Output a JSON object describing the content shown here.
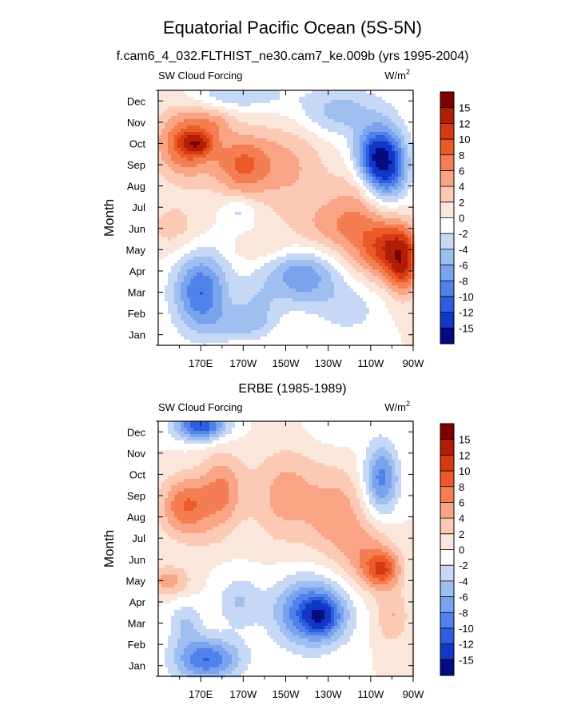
{
  "title": "Equatorial Pacific Ocean (5S-5N)",
  "chart_data": [
    {
      "type": "heatmap",
      "title": "f.cam6_4_032.FLTHIST_ne30.cam7_ke.009b (yrs 1995-2004)",
      "left_label": "SW Cloud Forcing",
      "units_base": "W/m",
      "units_exp": "2",
      "ylabel": "Month",
      "x_ticks": [
        "170E",
        "170W",
        "150W",
        "130W",
        "110W",
        "90W"
      ],
      "y_ticks": [
        "Jan",
        "Feb",
        "Mar",
        "Apr",
        "May",
        "Jun",
        "Jul",
        "Aug",
        "Sep",
        "Oct",
        "Nov",
        "Dec"
      ],
      "colorbar_labels": [
        "15",
        "12",
        "10",
        "8",
        "6",
        "4",
        "2",
        "0",
        "-2",
        "-4",
        "-6",
        "-8",
        "-10",
        "-12",
        "-15"
      ],
      "colorbar_colors": [
        "#800000",
        "#b01e06",
        "#d53a12",
        "#ec5a28",
        "#f47e52",
        "#f9a585",
        "#fcc9b4",
        "#fbe6dc",
        "#ffffff",
        "#c6d8f5",
        "#9ebff0",
        "#7aa3ee",
        "#5182eb",
        "#2e5ee0",
        "#1236c8",
        "#000c80"
      ],
      "blobs": [
        {
          "lon": 163,
          "mo": 10,
          "rx": 14,
          "ry": 1.6,
          "v": 9
        },
        {
          "lon": 168,
          "mo": 10,
          "rx": 7,
          "ry": 0.5,
          "v": 7
        },
        {
          "lon": 177,
          "mo": 11,
          "rx": 9,
          "ry": 0.7,
          "v": 3
        },
        {
          "lon": 190,
          "mo": 9,
          "rx": 14,
          "ry": 1.5,
          "v": 8
        },
        {
          "lon": 213,
          "mo": 9,
          "rx": 16,
          "ry": 2.3,
          "v": 4
        },
        {
          "lon": 243,
          "mo": 7,
          "rx": 14,
          "ry": 1.8,
          "v": 4
        },
        {
          "lon": 230,
          "mo": 5.8,
          "rx": 20,
          "ry": 1.5,
          "v": 4
        },
        {
          "lon": 258,
          "mo": 5,
          "rx": 14,
          "ry": 1.4,
          "v": 10
        },
        {
          "lon": 265,
          "mo": 4.3,
          "rx": 7,
          "ry": 1.5,
          "v": 8
        },
        {
          "lon": 158,
          "mo": 6,
          "rx": 14,
          "ry": 1.3,
          "v": 3
        },
        {
          "lon": 200,
          "mo": 5,
          "rx": 14,
          "ry": 0.6,
          "v": 2
        },
        {
          "lon": 257,
          "mo": 9,
          "rx": 10,
          "ry": 1.6,
          "v": -14
        },
        {
          "lon": 250,
          "mo": 9.5,
          "rx": 9,
          "ry": 1.2,
          "v": -6
        },
        {
          "lon": 235,
          "mo": 11.5,
          "rx": 22,
          "ry": 1.2,
          "v": -5
        },
        {
          "lon": 188,
          "mo": 12.3,
          "rx": 22,
          "ry": 0.7,
          "v": -4
        },
        {
          "lon": 170,
          "mo": 3,
          "rx": 13,
          "ry": 1.9,
          "v": -10
        },
        {
          "lon": 218,
          "mo": 3.8,
          "rx": 17,
          "ry": 1.4,
          "v": -8
        },
        {
          "lon": 190,
          "mo": 1.5,
          "rx": 14,
          "ry": 0.8,
          "v": -4
        },
        {
          "lon": 197,
          "mo": 2.5,
          "rx": 10,
          "ry": 1.2,
          "v": -3
        },
        {
          "lon": 240,
          "mo": 2.2,
          "rx": 14,
          "ry": 1.2,
          "v": -3
        },
        {
          "lon": 188,
          "mo": 6.8,
          "rx": 8,
          "ry": 0.7,
          "v": -3
        }
      ]
    },
    {
      "type": "heatmap",
      "title": "ERBE (1985-1989)",
      "left_label": "SW Cloud Forcing",
      "units_base": "W/m",
      "units_exp": "2",
      "ylabel": "Month",
      "x_ticks": [
        "170E",
        "170W",
        "150W",
        "130W",
        "110W",
        "90W"
      ],
      "y_ticks": [
        "Jan",
        "Feb",
        "Mar",
        "Apr",
        "May",
        "Jun",
        "Jul",
        "Aug",
        "Sep",
        "Oct",
        "Nov",
        "Dec"
      ],
      "colorbar_labels": [
        "15",
        "12",
        "10",
        "8",
        "6",
        "4",
        "2",
        "0",
        "-2",
        "-4",
        "-6",
        "-8",
        "-10",
        "-12",
        "-15"
      ],
      "colorbar_colors": [
        "#800000",
        "#b01e06",
        "#d53a12",
        "#ec5a28",
        "#f47e52",
        "#f9a585",
        "#fcc9b4",
        "#fbe6dc",
        "#ffffff",
        "#c6d8f5",
        "#9ebff0",
        "#7aa3ee",
        "#5182eb",
        "#2e5ee0",
        "#1236c8",
        "#000c80"
      ],
      "blobs": [
        {
          "lon": 163,
          "mo": 8.5,
          "rx": 12,
          "ry": 1.4,
          "v": 8
        },
        {
          "lon": 180,
          "mo": 9.2,
          "rx": 10,
          "ry": 1.8,
          "v": 6
        },
        {
          "lon": 210,
          "mo": 9,
          "rx": 16,
          "ry": 2.2,
          "v": 5
        },
        {
          "lon": 235,
          "mo": 8,
          "rx": 14,
          "ry": 2.2,
          "v": 5
        },
        {
          "lon": 250,
          "mo": 6,
          "rx": 12,
          "ry": 1.5,
          "v": 5
        },
        {
          "lon": 256,
          "mo": 5.5,
          "rx": 8,
          "ry": 0.8,
          "v": 7
        },
        {
          "lon": 260,
          "mo": 3.3,
          "rx": 8,
          "ry": 1.3,
          "v": 4
        },
        {
          "lon": 155,
          "mo": 5,
          "rx": 10,
          "ry": 0.7,
          "v": 5
        },
        {
          "lon": 255,
          "mo": 9.8,
          "rx": 8,
          "ry": 1.6,
          "v": -9
        },
        {
          "lon": 170,
          "mo": 12.3,
          "rx": 12,
          "ry": 0.7,
          "v": -12
        },
        {
          "lon": 235,
          "mo": 12.2,
          "rx": 14,
          "ry": 0.8,
          "v": -2
        },
        {
          "lon": 222,
          "mo": 3.5,
          "rx": 17,
          "ry": 1.6,
          "v": -11
        },
        {
          "lon": 227,
          "mo": 3.3,
          "rx": 8,
          "ry": 0.8,
          "v": -6
        },
        {
          "lon": 173,
          "mo": 1.3,
          "rx": 16,
          "ry": 1.0,
          "v": -10
        },
        {
          "lon": 163,
          "mo": 3,
          "rx": 8,
          "ry": 1.0,
          "v": -4
        },
        {
          "lon": 188,
          "mo": 4,
          "rx": 10,
          "ry": 1.2,
          "v": -4
        },
        {
          "lon": 172,
          "mo": 7,
          "rx": 10,
          "ry": 0.6,
          "v": 1
        }
      ]
    }
  ]
}
